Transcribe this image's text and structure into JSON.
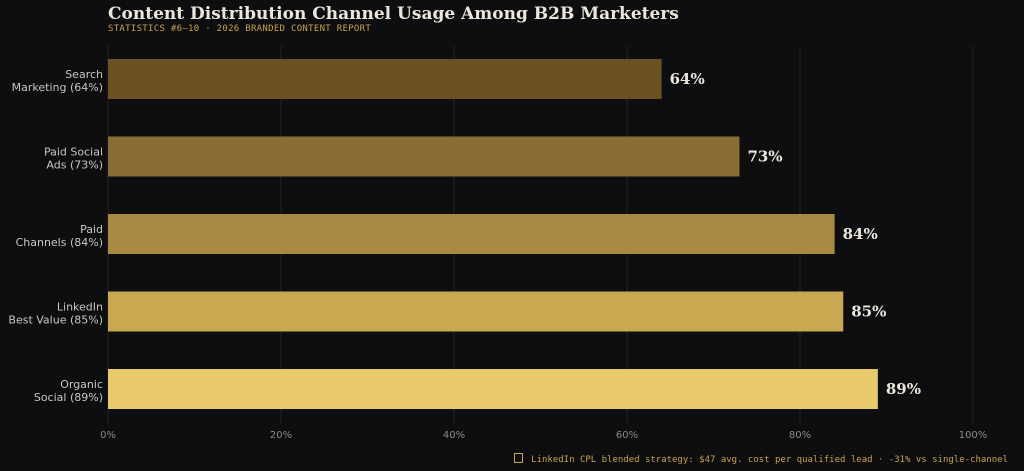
{
  "header": {
    "title": "Content Distribution Channel Usage Among B2B Marketers",
    "subtitle": "STATISTICS #6–10  ·  2026 BRANDED CONTENT REPORT"
  },
  "footnote": {
    "icon": "note-icon",
    "text": "LinkedIn CPL blended strategy: $47 avg. cost per qualified lead  ·  -31% vs single-channel"
  },
  "colors": {
    "background": "#0e0e10",
    "bars": [
      "#6b5223",
      "#8a6d34",
      "#a98a42",
      "#c9a852",
      "#e8c96c"
    ],
    "grid": "#24242a",
    "value_text": "#ece7dc",
    "accent": "#c7a24e"
  },
  "chart_data": {
    "type": "bar",
    "orientation": "horizontal",
    "categories": [
      [
        "Search",
        "Marketing (64%)"
      ],
      [
        "Paid Social",
        "Ads (73%)"
      ],
      [
        "Paid",
        "Channels (84%)"
      ],
      [
        "LinkedIn",
        "Best Value (85%)"
      ],
      [
        "Organic",
        "Social (89%)"
      ]
    ],
    "values": [
      64,
      73,
      84,
      85,
      89
    ],
    "value_labels": [
      "64%",
      "73%",
      "84%",
      "85%",
      "89%"
    ],
    "xlim": [
      0,
      100
    ],
    "x_ticks": [
      0,
      20,
      40,
      60,
      80,
      100
    ],
    "x_tick_labels": [
      "0%",
      "20%",
      "40%",
      "60%",
      "80%",
      "100%"
    ],
    "grid": "vertical",
    "legend": "none"
  }
}
